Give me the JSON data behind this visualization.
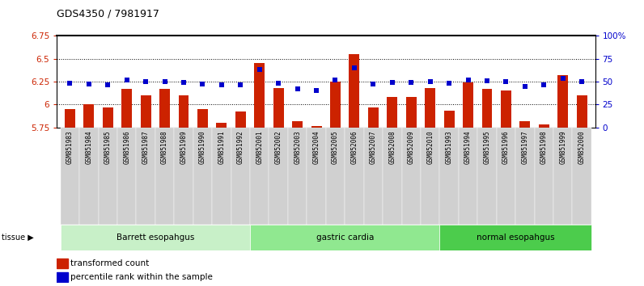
{
  "title": "GDS4350 / 7981917",
  "samples": [
    "GSM851983",
    "GSM851984",
    "GSM851985",
    "GSM851986",
    "GSM851987",
    "GSM851988",
    "GSM851989",
    "GSM851990",
    "GSM851991",
    "GSM851992",
    "GSM852001",
    "GSM852002",
    "GSM852003",
    "GSM852004",
    "GSM852005",
    "GSM852006",
    "GSM852007",
    "GSM852008",
    "GSM852009",
    "GSM852010",
    "GSM851993",
    "GSM851994",
    "GSM851995",
    "GSM851996",
    "GSM851997",
    "GSM851998",
    "GSM851999",
    "GSM852000"
  ],
  "transformed_count": [
    5.95,
    6.0,
    5.97,
    6.17,
    6.1,
    6.17,
    6.1,
    5.95,
    5.8,
    5.92,
    6.45,
    6.18,
    5.82,
    5.76,
    6.25,
    6.55,
    5.97,
    6.08,
    6.08,
    6.18,
    5.93,
    6.24,
    6.17,
    6.15,
    5.82,
    5.78,
    6.32,
    6.1
  ],
  "percentile_rank": [
    48,
    47,
    46,
    52,
    50,
    50,
    49,
    47,
    46,
    46,
    63,
    48,
    42,
    40,
    52,
    65,
    47,
    49,
    49,
    50,
    48,
    52,
    51,
    50,
    45,
    46,
    53,
    50
  ],
  "groups": [
    {
      "label": "Barrett esopahgus",
      "start": 0,
      "end": 10,
      "color": "#c8f0c8"
    },
    {
      "label": "gastric cardia",
      "start": 10,
      "end": 20,
      "color": "#90e890"
    },
    {
      "label": "normal esopahgus",
      "start": 20,
      "end": 28,
      "color": "#4ccc4c"
    }
  ],
  "ymin": 5.75,
  "ymax": 6.75,
  "bar_color": "#cc2200",
  "dot_color": "#0000cc",
  "left_yticks": [
    5.75,
    6.0,
    6.25,
    6.5,
    6.75
  ],
  "left_yticklabels": [
    "5.75",
    "6",
    "6.25",
    "6.5",
    "6.75"
  ],
  "right_yticks": [
    0,
    25,
    50,
    75,
    100
  ],
  "right_yticklabels": [
    "0",
    "25",
    "50",
    "75",
    "100%"
  ],
  "grid_vals": [
    6.0,
    6.25,
    6.5
  ],
  "legend_red": "transformed count",
  "legend_blue": "percentile rank within the sample",
  "tissue_label": "tissue"
}
